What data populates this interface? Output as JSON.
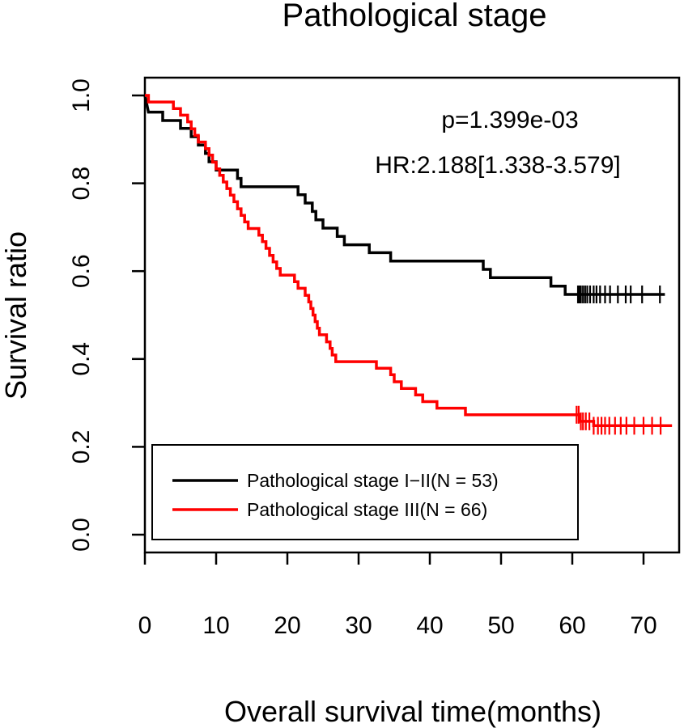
{
  "chart_data": {
    "type": "line",
    "subtype": "kaplan-meier",
    "title": "Pathological stage",
    "xlabel": "Overall survival time(months)",
    "ylabel": "Survival ratio",
    "xlim": [
      0,
      74
    ],
    "ylim": [
      0.0,
      1.0
    ],
    "xticks": [
      0,
      10,
      20,
      30,
      40,
      50,
      60,
      70
    ],
    "yticks": [
      0.0,
      0.2,
      0.4,
      0.6,
      0.8,
      1.0
    ],
    "ytick_labels": [
      "0.0",
      "0.2",
      "0.4",
      "0.6",
      "0.8",
      "1.0"
    ],
    "grid": false,
    "legend_position": "bottom-left",
    "annotations": [
      "p=1.399e-03",
      "HR:2.188[1.338-3.579]"
    ],
    "series": [
      {
        "name": "Pathological stage I−II(N = 53)",
        "color": "#000000",
        "steps": [
          [
            0,
            1.0
          ],
          [
            0.5,
            0.962
          ],
          [
            2.5,
            0.962
          ],
          [
            2.5,
            0.943
          ],
          [
            5,
            0.943
          ],
          [
            5,
            0.925
          ],
          [
            6.5,
            0.925
          ],
          [
            6.5,
            0.906
          ],
          [
            7.5,
            0.906
          ],
          [
            7.5,
            0.887
          ],
          [
            8.5,
            0.887
          ],
          [
            8.5,
            0.868
          ],
          [
            9,
            0.868
          ],
          [
            9,
            0.849
          ],
          [
            10,
            0.849
          ],
          [
            10,
            0.83
          ],
          [
            13,
            0.83
          ],
          [
            13,
            0.811
          ],
          [
            13.5,
            0.811
          ],
          [
            13.5,
            0.792
          ],
          [
            21.5,
            0.792
          ],
          [
            21.5,
            0.774
          ],
          [
            22.5,
            0.774
          ],
          [
            22.5,
            0.755
          ],
          [
            23.5,
            0.755
          ],
          [
            23.5,
            0.736
          ],
          [
            24,
            0.736
          ],
          [
            24,
            0.717
          ],
          [
            25,
            0.717
          ],
          [
            25,
            0.698
          ],
          [
            27,
            0.698
          ],
          [
            27,
            0.679
          ],
          [
            28,
            0.679
          ],
          [
            28,
            0.66
          ],
          [
            31.5,
            0.66
          ],
          [
            31.5,
            0.642
          ],
          [
            34.5,
            0.642
          ],
          [
            34.5,
            0.623
          ],
          [
            47.5,
            0.623
          ],
          [
            47.5,
            0.604
          ],
          [
            48.5,
            0.604
          ],
          [
            48.5,
            0.585
          ],
          [
            57,
            0.585
          ],
          [
            57,
            0.566
          ],
          [
            59,
            0.566
          ],
          [
            59,
            0.547
          ],
          [
            73,
            0.547
          ]
        ],
        "censor_times": [
          60.8,
          61.0,
          61.2,
          61.5,
          61.8,
          62.1,
          62.5,
          63.0,
          63.4,
          63.9,
          64.6,
          65.3,
          66.4,
          67.5,
          68.2,
          69.8,
          72.3
        ]
      },
      {
        "name": "Pathological stage III(N = 66)",
        "color": "#ff0000",
        "steps": [
          [
            0,
            1.0
          ],
          [
            0.5,
            1.0
          ],
          [
            0.5,
            0.985
          ],
          [
            4,
            0.985
          ],
          [
            4,
            0.97
          ],
          [
            5,
            0.97
          ],
          [
            5,
            0.955
          ],
          [
            6,
            0.955
          ],
          [
            6,
            0.94
          ],
          [
            6.5,
            0.94
          ],
          [
            6.5,
            0.924
          ],
          [
            7,
            0.924
          ],
          [
            7,
            0.909
          ],
          [
            7.5,
            0.909
          ],
          [
            7.5,
            0.894
          ],
          [
            8.5,
            0.894
          ],
          [
            8.5,
            0.879
          ],
          [
            9,
            0.879
          ],
          [
            9,
            0.864
          ],
          [
            9.5,
            0.864
          ],
          [
            9.5,
            0.848
          ],
          [
            10,
            0.848
          ],
          [
            10,
            0.833
          ],
          [
            10.5,
            0.833
          ],
          [
            10.5,
            0.818
          ],
          [
            11,
            0.818
          ],
          [
            11,
            0.803
          ],
          [
            11.5,
            0.803
          ],
          [
            11.5,
            0.788
          ],
          [
            12,
            0.788
          ],
          [
            12,
            0.773
          ],
          [
            12.5,
            0.773
          ],
          [
            12.5,
            0.758
          ],
          [
            13,
            0.758
          ],
          [
            13,
            0.742
          ],
          [
            13.5,
            0.742
          ],
          [
            13.5,
            0.727
          ],
          [
            14,
            0.727
          ],
          [
            14,
            0.712
          ],
          [
            14.5,
            0.712
          ],
          [
            14.5,
            0.697
          ],
          [
            16,
            0.697
          ],
          [
            16,
            0.682
          ],
          [
            16.5,
            0.682
          ],
          [
            16.5,
            0.667
          ],
          [
            17,
            0.667
          ],
          [
            17,
            0.652
          ],
          [
            17.5,
            0.652
          ],
          [
            17.5,
            0.636
          ],
          [
            18,
            0.636
          ],
          [
            18,
            0.621
          ],
          [
            18.5,
            0.621
          ],
          [
            18.5,
            0.606
          ],
          [
            19,
            0.606
          ],
          [
            19,
            0.591
          ],
          [
            21,
            0.591
          ],
          [
            21,
            0.576
          ],
          [
            21.5,
            0.576
          ],
          [
            21.5,
            0.561
          ],
          [
            22.5,
            0.561
          ],
          [
            22.5,
            0.545
          ],
          [
            23,
            0.545
          ],
          [
            23,
            0.53
          ],
          [
            23.3,
            0.53
          ],
          [
            23.3,
            0.515
          ],
          [
            23.6,
            0.515
          ],
          [
            23.6,
            0.5
          ],
          [
            23.9,
            0.5
          ],
          [
            23.9,
            0.485
          ],
          [
            24.2,
            0.485
          ],
          [
            24.2,
            0.47
          ],
          [
            24.5,
            0.47
          ],
          [
            24.5,
            0.455
          ],
          [
            25.5,
            0.455
          ],
          [
            25.5,
            0.439
          ],
          [
            26,
            0.439
          ],
          [
            26,
            0.424
          ],
          [
            26.3,
            0.424
          ],
          [
            26.3,
            0.409
          ],
          [
            26.8,
            0.409
          ],
          [
            26.8,
            0.394
          ],
          [
            32.5,
            0.394
          ],
          [
            32.5,
            0.379
          ],
          [
            34.5,
            0.379
          ],
          [
            34.5,
            0.364
          ],
          [
            35,
            0.364
          ],
          [
            35,
            0.348
          ],
          [
            36,
            0.348
          ],
          [
            36,
            0.333
          ],
          [
            38,
            0.333
          ],
          [
            38,
            0.318
          ],
          [
            39,
            0.318
          ],
          [
            39,
            0.303
          ],
          [
            41,
            0.303
          ],
          [
            41,
            0.288
          ],
          [
            45,
            0.288
          ],
          [
            45,
            0.273
          ],
          [
            60,
            0.273
          ],
          [
            60,
            0.273
          ],
          [
            61,
            0.273
          ],
          [
            61,
            0.258
          ],
          [
            63,
            0.258
          ],
          [
            63,
            0.248
          ],
          [
            74,
            0.248
          ]
        ],
        "censor_times": [
          60.6,
          60.9,
          61.2,
          61.5,
          61.9,
          62.4,
          63.0,
          63.6,
          64.1,
          64.6,
          65.2,
          66.0,
          66.8,
          67.6,
          68.7,
          70.0,
          71.2,
          72.4
        ]
      }
    ]
  }
}
